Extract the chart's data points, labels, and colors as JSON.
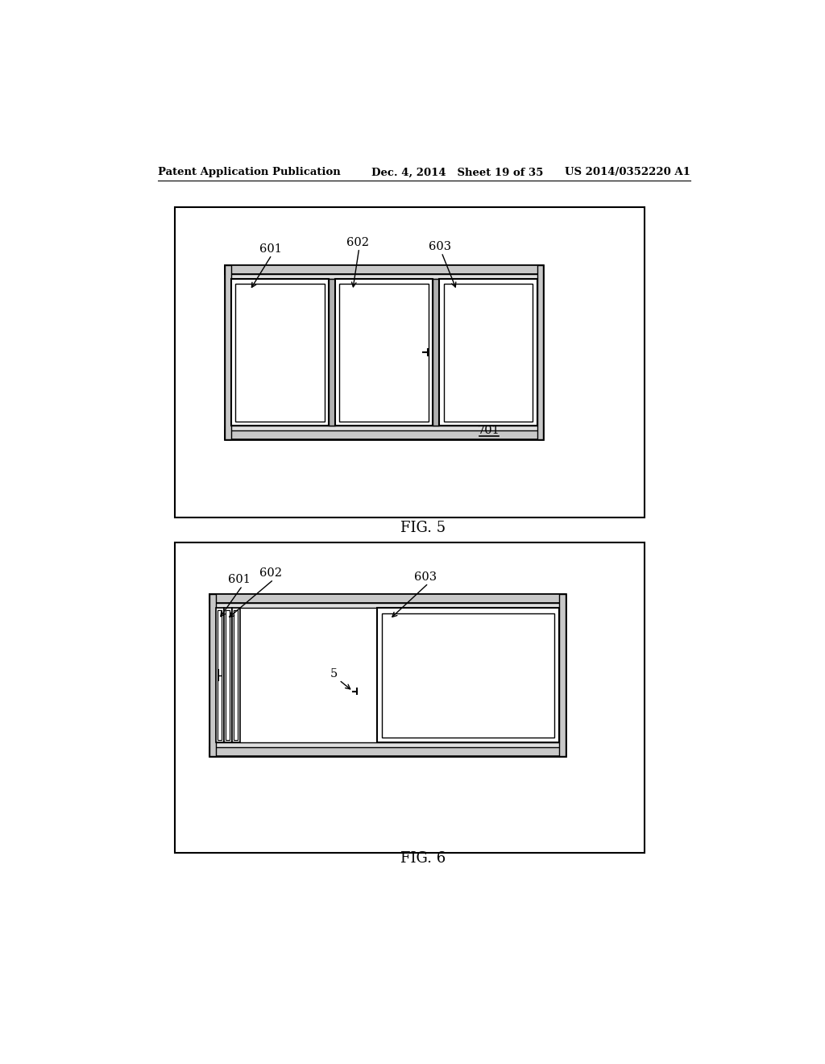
{
  "bg_color": "#ffffff",
  "header_left": "Patent Application Publication",
  "header_mid": "Dec. 4, 2014   Sheet 19 of 35",
  "header_right": "US 2014/0352220 A1",
  "fig5_label": "FIG. 5",
  "fig6_label": "FIG. 6",
  "fig5_ref": "701",
  "label_601": "601",
  "label_602": "602",
  "label_603": "603",
  "label_5": "5",
  "line_color": "#000000",
  "frame_fill": "#cccccc",
  "panel_fill": "#ffffff"
}
